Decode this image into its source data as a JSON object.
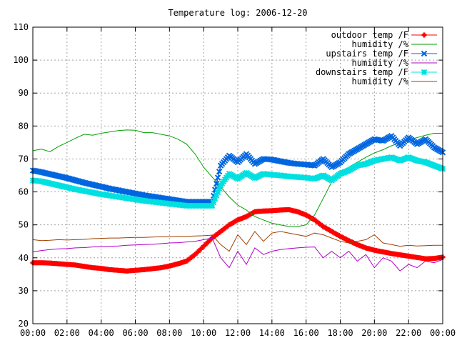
{
  "chart_data": {
    "type": "line",
    "title": "Temperature log: 2006-12-20",
    "xlabel": "",
    "ylabel": "",
    "x_unit": "hours",
    "xlim": [
      0,
      24
    ],
    "ylim": [
      20,
      110
    ],
    "grid": true,
    "legend_position": "top-right",
    "x_tick_labels": [
      "00:00",
      "02:00",
      "04:00",
      "06:00",
      "08:00",
      "10:00",
      "12:00",
      "14:00",
      "16:00",
      "18:00",
      "20:00",
      "22:00",
      "00:00"
    ],
    "y_tick_labels": [
      "20",
      "30",
      "40",
      "50",
      "60",
      "70",
      "80",
      "90",
      "100",
      "110"
    ],
    "series": [
      {
        "name": "outdoor temp /F",
        "color": "#ff0000",
        "marker": "plus",
        "x": [
          0,
          0.5,
          1,
          1.5,
          2,
          2.5,
          3,
          3.5,
          4,
          4.5,
          5,
          5.5,
          6,
          6.5,
          7,
          7.5,
          8,
          8.5,
          9,
          9.5,
          10,
          10.5,
          11,
          11.5,
          12,
          12.5,
          13,
          13.5,
          14,
          14.5,
          15,
          15.5,
          16,
          16.5,
          17,
          17.5,
          18,
          18.5,
          19,
          19.5,
          20,
          20.5,
          21,
          21.5,
          22,
          22.5,
          23,
          23.5,
          24
        ],
        "y": [
          38.5,
          38.5,
          38.4,
          38.2,
          38,
          37.8,
          37.4,
          37,
          36.8,
          36.4,
          36.2,
          36,
          36.2,
          36.4,
          36.7,
          37,
          37.5,
          38.2,
          39,
          41,
          43.5,
          46,
          48,
          50,
          51.5,
          52.5,
          54,
          54.2,
          54.3,
          54.5,
          54.6,
          54,
          53,
          51.5,
          49.5,
          48,
          46.5,
          45.2,
          44,
          43,
          42.3,
          41.8,
          41.3,
          40.9,
          40.5,
          40.1,
          39.7,
          39.8,
          40.2
        ]
      },
      {
        "name": "humidity /%",
        "color": "#00a000",
        "marker": "none",
        "x": [
          0,
          0.5,
          1,
          1.5,
          2,
          2.5,
          3,
          3.5,
          4,
          4.5,
          5,
          5.5,
          6,
          6.5,
          7,
          7.5,
          8,
          8.5,
          9,
          9.5,
          10,
          10.5,
          11,
          11.5,
          12,
          12.5,
          13,
          13.5,
          14,
          14.5,
          15,
          15.5,
          16,
          16.5,
          17,
          17.5,
          18,
          18.5,
          19,
          19.5,
          20,
          20.5,
          21,
          21.5,
          22,
          22.5,
          23,
          23.5,
          24
        ],
        "y": [
          72.5,
          73,
          72.2,
          73.8,
          75,
          76.3,
          77.5,
          77.2,
          77.8,
          78.2,
          78.6,
          78.8,
          78.7,
          78,
          78,
          77.5,
          77,
          76,
          74.5,
          71.5,
          67.5,
          64.5,
          61.5,
          58.5,
          56,
          54.5,
          52.5,
          51.5,
          50.5,
          50,
          49.5,
          49.5,
          50,
          53,
          58,
          63,
          66,
          67.5,
          69,
          70.5,
          71.8,
          72.8,
          74,
          75,
          75.8,
          76.5,
          77.2,
          77.8,
          77.8
        ]
      },
      {
        "name": "upstairs temp /F",
        "color": "#0066e0",
        "marker": "cross",
        "x": [
          0,
          0.5,
          1,
          1.5,
          2,
          2.5,
          3,
          3.5,
          4,
          4.5,
          5,
          5.5,
          6,
          6.5,
          7,
          7.5,
          8,
          8.5,
          9,
          9.5,
          10,
          10.5,
          11,
          11.5,
          12,
          12.5,
          13,
          13.5,
          14,
          14.5,
          15,
          15.5,
          16,
          16.5,
          17,
          17.5,
          18,
          18.5,
          19,
          19.5,
          20,
          20.5,
          21,
          21.5,
          22,
          22.5,
          23,
          23.5,
          24
        ],
        "y": [
          66.5,
          66,
          65.4,
          64.8,
          64.2,
          63.5,
          62.8,
          62.2,
          61.6,
          61,
          60.5,
          60,
          59.5,
          59,
          58.6,
          58.2,
          57.8,
          57.4,
          57,
          57,
          57,
          57,
          68,
          71,
          69,
          71.5,
          68.5,
          70,
          69.8,
          69.3,
          68.8,
          68.5,
          68.3,
          68,
          70,
          67.5,
          69,
          71.5,
          73,
          74.5,
          76,
          75.5,
          77,
          74,
          76.5,
          74.5,
          76,
          73.5,
          72
        ]
      },
      {
        "name": "humidity /%",
        "color": "#b000c8",
        "marker": "none",
        "x": [
          0,
          0.5,
          1,
          1.5,
          2,
          2.5,
          3,
          3.5,
          4,
          4.5,
          5,
          5.5,
          6,
          6.5,
          7,
          7.5,
          8,
          8.5,
          9,
          9.5,
          10,
          10.5,
          11,
          11.5,
          12,
          12.5,
          13,
          13.5,
          14,
          14.5,
          15,
          15.5,
          16,
          16.5,
          17,
          17.5,
          18,
          18.5,
          19,
          19.5,
          20,
          20.5,
          21,
          21.5,
          22,
          22.5,
          23,
          23.5,
          24
        ],
        "y": [
          41.8,
          42.2,
          42.5,
          42.7,
          42.8,
          43,
          43.1,
          43.3,
          43.4,
          43.5,
          43.6,
          43.8,
          43.9,
          44,
          44.1,
          44.3,
          44.5,
          44.6,
          44.8,
          45,
          45.5,
          46,
          40,
          37,
          42,
          38,
          43,
          41,
          42,
          42.5,
          42.8,
          43,
          43.2,
          43.3,
          40,
          42,
          40,
          42,
          39,
          41,
          37,
          40,
          39,
          36,
          38,
          37,
          39,
          38.5,
          39.5
        ]
      },
      {
        "name": "downstairs temp /F",
        "color": "#00e0e0",
        "marker": "star",
        "x": [
          0,
          0.5,
          1,
          1.5,
          2,
          2.5,
          3,
          3.5,
          4,
          4.5,
          5,
          5.5,
          6,
          6.5,
          7,
          7.5,
          8,
          8.5,
          9,
          9.5,
          10,
          10.5,
          11,
          11.5,
          12,
          12.5,
          13,
          13.5,
          14,
          14.5,
          15,
          15.5,
          16,
          16.5,
          17,
          17.5,
          18,
          18.5,
          19,
          19.5,
          20,
          20.5,
          21,
          21.5,
          22,
          22.5,
          23,
          23.5,
          24
        ],
        "y": [
          63.5,
          63.2,
          62.6,
          62,
          61.4,
          60.8,
          60.3,
          59.8,
          59.3,
          58.9,
          58.5,
          58.1,
          57.7,
          57.3,
          57,
          56.7,
          56.4,
          56.1,
          55.8,
          55.8,
          55.8,
          55.8,
          62,
          65.5,
          64,
          65.8,
          64.2,
          65.5,
          65.2,
          65,
          64.7,
          64.5,
          64.3,
          64,
          65,
          63.5,
          65.5,
          66.5,
          68,
          68.5,
          69.5,
          70,
          70.5,
          69.5,
          70.5,
          69.5,
          69,
          68,
          67
        ]
      },
      {
        "name": "humidity /%",
        "color": "#a04000",
        "marker": "none",
        "x": [
          0,
          0.5,
          1,
          1.5,
          2,
          2.5,
          3,
          3.5,
          4,
          4.5,
          5,
          5.5,
          6,
          6.5,
          7,
          7.5,
          8,
          8.5,
          9,
          9.5,
          10,
          10.5,
          11,
          11.5,
          12,
          12.5,
          13,
          13.5,
          14,
          14.5,
          15,
          15.5,
          16,
          16.5,
          17,
          17.5,
          18,
          18.5,
          19,
          19.5,
          20,
          20.5,
          21,
          21.5,
          22,
          22.5,
          23,
          23.5,
          24
        ],
        "y": [
          45.5,
          45.2,
          45.3,
          45.5,
          45.4,
          45.5,
          45.6,
          45.8,
          45.9,
          46,
          46,
          46.1,
          46.2,
          46.2,
          46.3,
          46.4,
          46.4,
          46.5,
          46.5,
          46.6,
          46.7,
          46.9,
          44,
          42,
          47,
          44,
          48,
          45,
          47.5,
          48,
          47.5,
          47,
          46.5,
          47.5,
          47,
          46,
          45,
          44.5,
          45,
          45.5,
          47,
          44.5,
          44,
          43.5,
          43.8,
          43.6,
          43.7,
          43.8,
          43.8
        ]
      }
    ]
  }
}
